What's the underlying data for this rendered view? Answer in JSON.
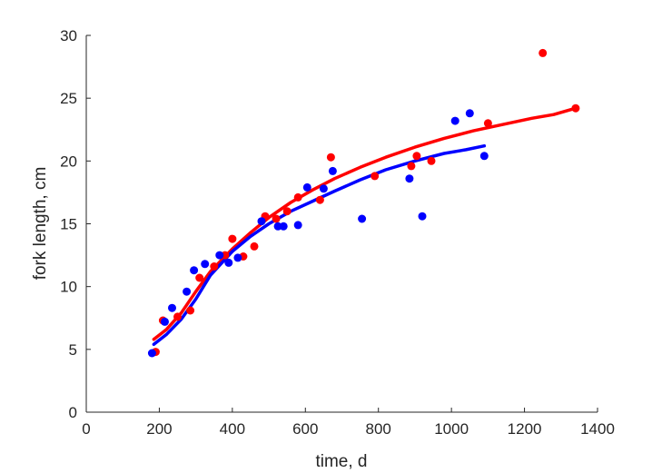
{
  "chart_data": {
    "type": "scatter",
    "title": "",
    "xlabel": "time, d",
    "ylabel": "fork length, cm",
    "xlim": [
      0,
      1400
    ],
    "ylim": [
      0,
      30
    ],
    "xticks": [
      0,
      200,
      400,
      600,
      800,
      1000,
      1200,
      1400
    ],
    "yticks": [
      0,
      5,
      10,
      15,
      20,
      25,
      30
    ],
    "grid": false,
    "legend": "none",
    "series": [
      {
        "color": "#ff0000",
        "points": [
          [
            190,
            4.8
          ],
          [
            210,
            7.3
          ],
          [
            250,
            7.6
          ],
          [
            285,
            8.1
          ],
          [
            310,
            10.7
          ],
          [
            350,
            11.6
          ],
          [
            380,
            12.5
          ],
          [
            400,
            13.8
          ],
          [
            430,
            12.4
          ],
          [
            460,
            13.2
          ],
          [
            490,
            15.6
          ],
          [
            520,
            15.4
          ],
          [
            550,
            16.0
          ],
          [
            580,
            17.1
          ],
          [
            640,
            16.9
          ],
          [
            670,
            20.3
          ],
          [
            790,
            18.8
          ],
          [
            890,
            19.6
          ],
          [
            905,
            20.4
          ],
          [
            945,
            20.0
          ],
          [
            1100,
            23.0
          ],
          [
            1250,
            28.6
          ],
          [
            1340,
            24.2
          ]
        ],
        "fit": [
          [
            185,
            5.8
          ],
          [
            220,
            6.6
          ],
          [
            260,
            7.9
          ],
          [
            300,
            9.6
          ],
          [
            340,
            11.2
          ],
          [
            400,
            13.0
          ],
          [
            450,
            14.3
          ],
          [
            500,
            15.5
          ],
          [
            560,
            16.7
          ],
          [
            620,
            17.7
          ],
          [
            680,
            18.6
          ],
          [
            750,
            19.5
          ],
          [
            820,
            20.3
          ],
          [
            900,
            21.1
          ],
          [
            980,
            21.8
          ],
          [
            1060,
            22.4
          ],
          [
            1140,
            22.9
          ],
          [
            1220,
            23.4
          ],
          [
            1280,
            23.7
          ],
          [
            1340,
            24.2
          ]
        ]
      },
      {
        "color": "#0000ff",
        "points": [
          [
            180,
            4.7
          ],
          [
            215,
            7.2
          ],
          [
            235,
            8.3
          ],
          [
            275,
            9.6
          ],
          [
            295,
            11.3
          ],
          [
            325,
            11.8
          ],
          [
            365,
            12.5
          ],
          [
            390,
            11.9
          ],
          [
            415,
            12.3
          ],
          [
            480,
            15.2
          ],
          [
            525,
            14.8
          ],
          [
            540,
            14.8
          ],
          [
            580,
            14.9
          ],
          [
            605,
            17.9
          ],
          [
            650,
            17.8
          ],
          [
            675,
            19.2
          ],
          [
            755,
            15.4
          ],
          [
            885,
            18.6
          ],
          [
            920,
            15.6
          ],
          [
            1010,
            23.2
          ],
          [
            1050,
            23.8
          ],
          [
            1090,
            20.4
          ]
        ],
        "fit": [
          [
            185,
            5.4
          ],
          [
            220,
            6.2
          ],
          [
            260,
            7.4
          ],
          [
            300,
            9.0
          ],
          [
            340,
            10.9
          ],
          [
            400,
            12.8
          ],
          [
            450,
            14.0
          ],
          [
            500,
            15.0
          ],
          [
            560,
            16.0
          ],
          [
            620,
            16.8
          ],
          [
            680,
            17.6
          ],
          [
            750,
            18.5
          ],
          [
            820,
            19.3
          ],
          [
            900,
            20.0
          ],
          [
            980,
            20.6
          ],
          [
            1040,
            20.9
          ],
          [
            1090,
            21.2
          ]
        ]
      }
    ]
  }
}
